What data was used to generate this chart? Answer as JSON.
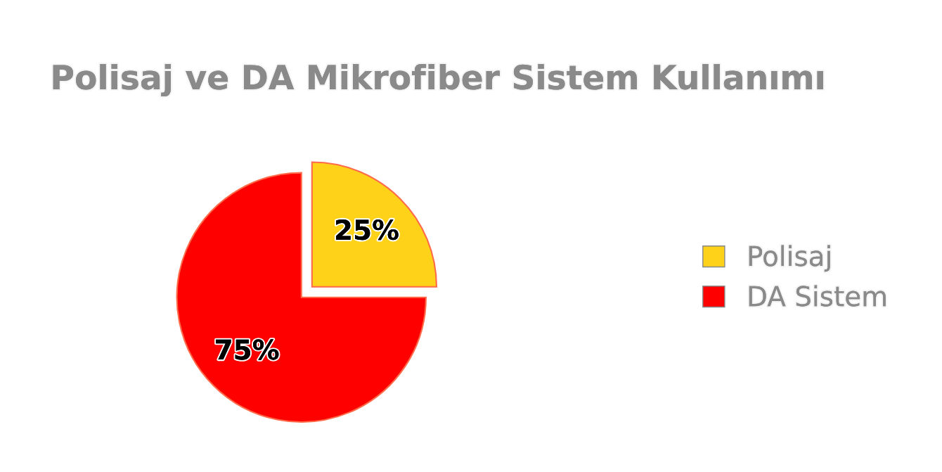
{
  "chart_data": {
    "type": "pie",
    "title": "Polisaj ve DA Mikrofiber Sistem Kullanımı",
    "categories": [
      "Polisaj",
      "DA Sistem"
    ],
    "values": [
      25,
      75
    ],
    "colors": [
      "#ffd21a",
      "#ff0000"
    ],
    "value_labels": [
      "25%",
      "75%"
    ],
    "legend": "right"
  }
}
